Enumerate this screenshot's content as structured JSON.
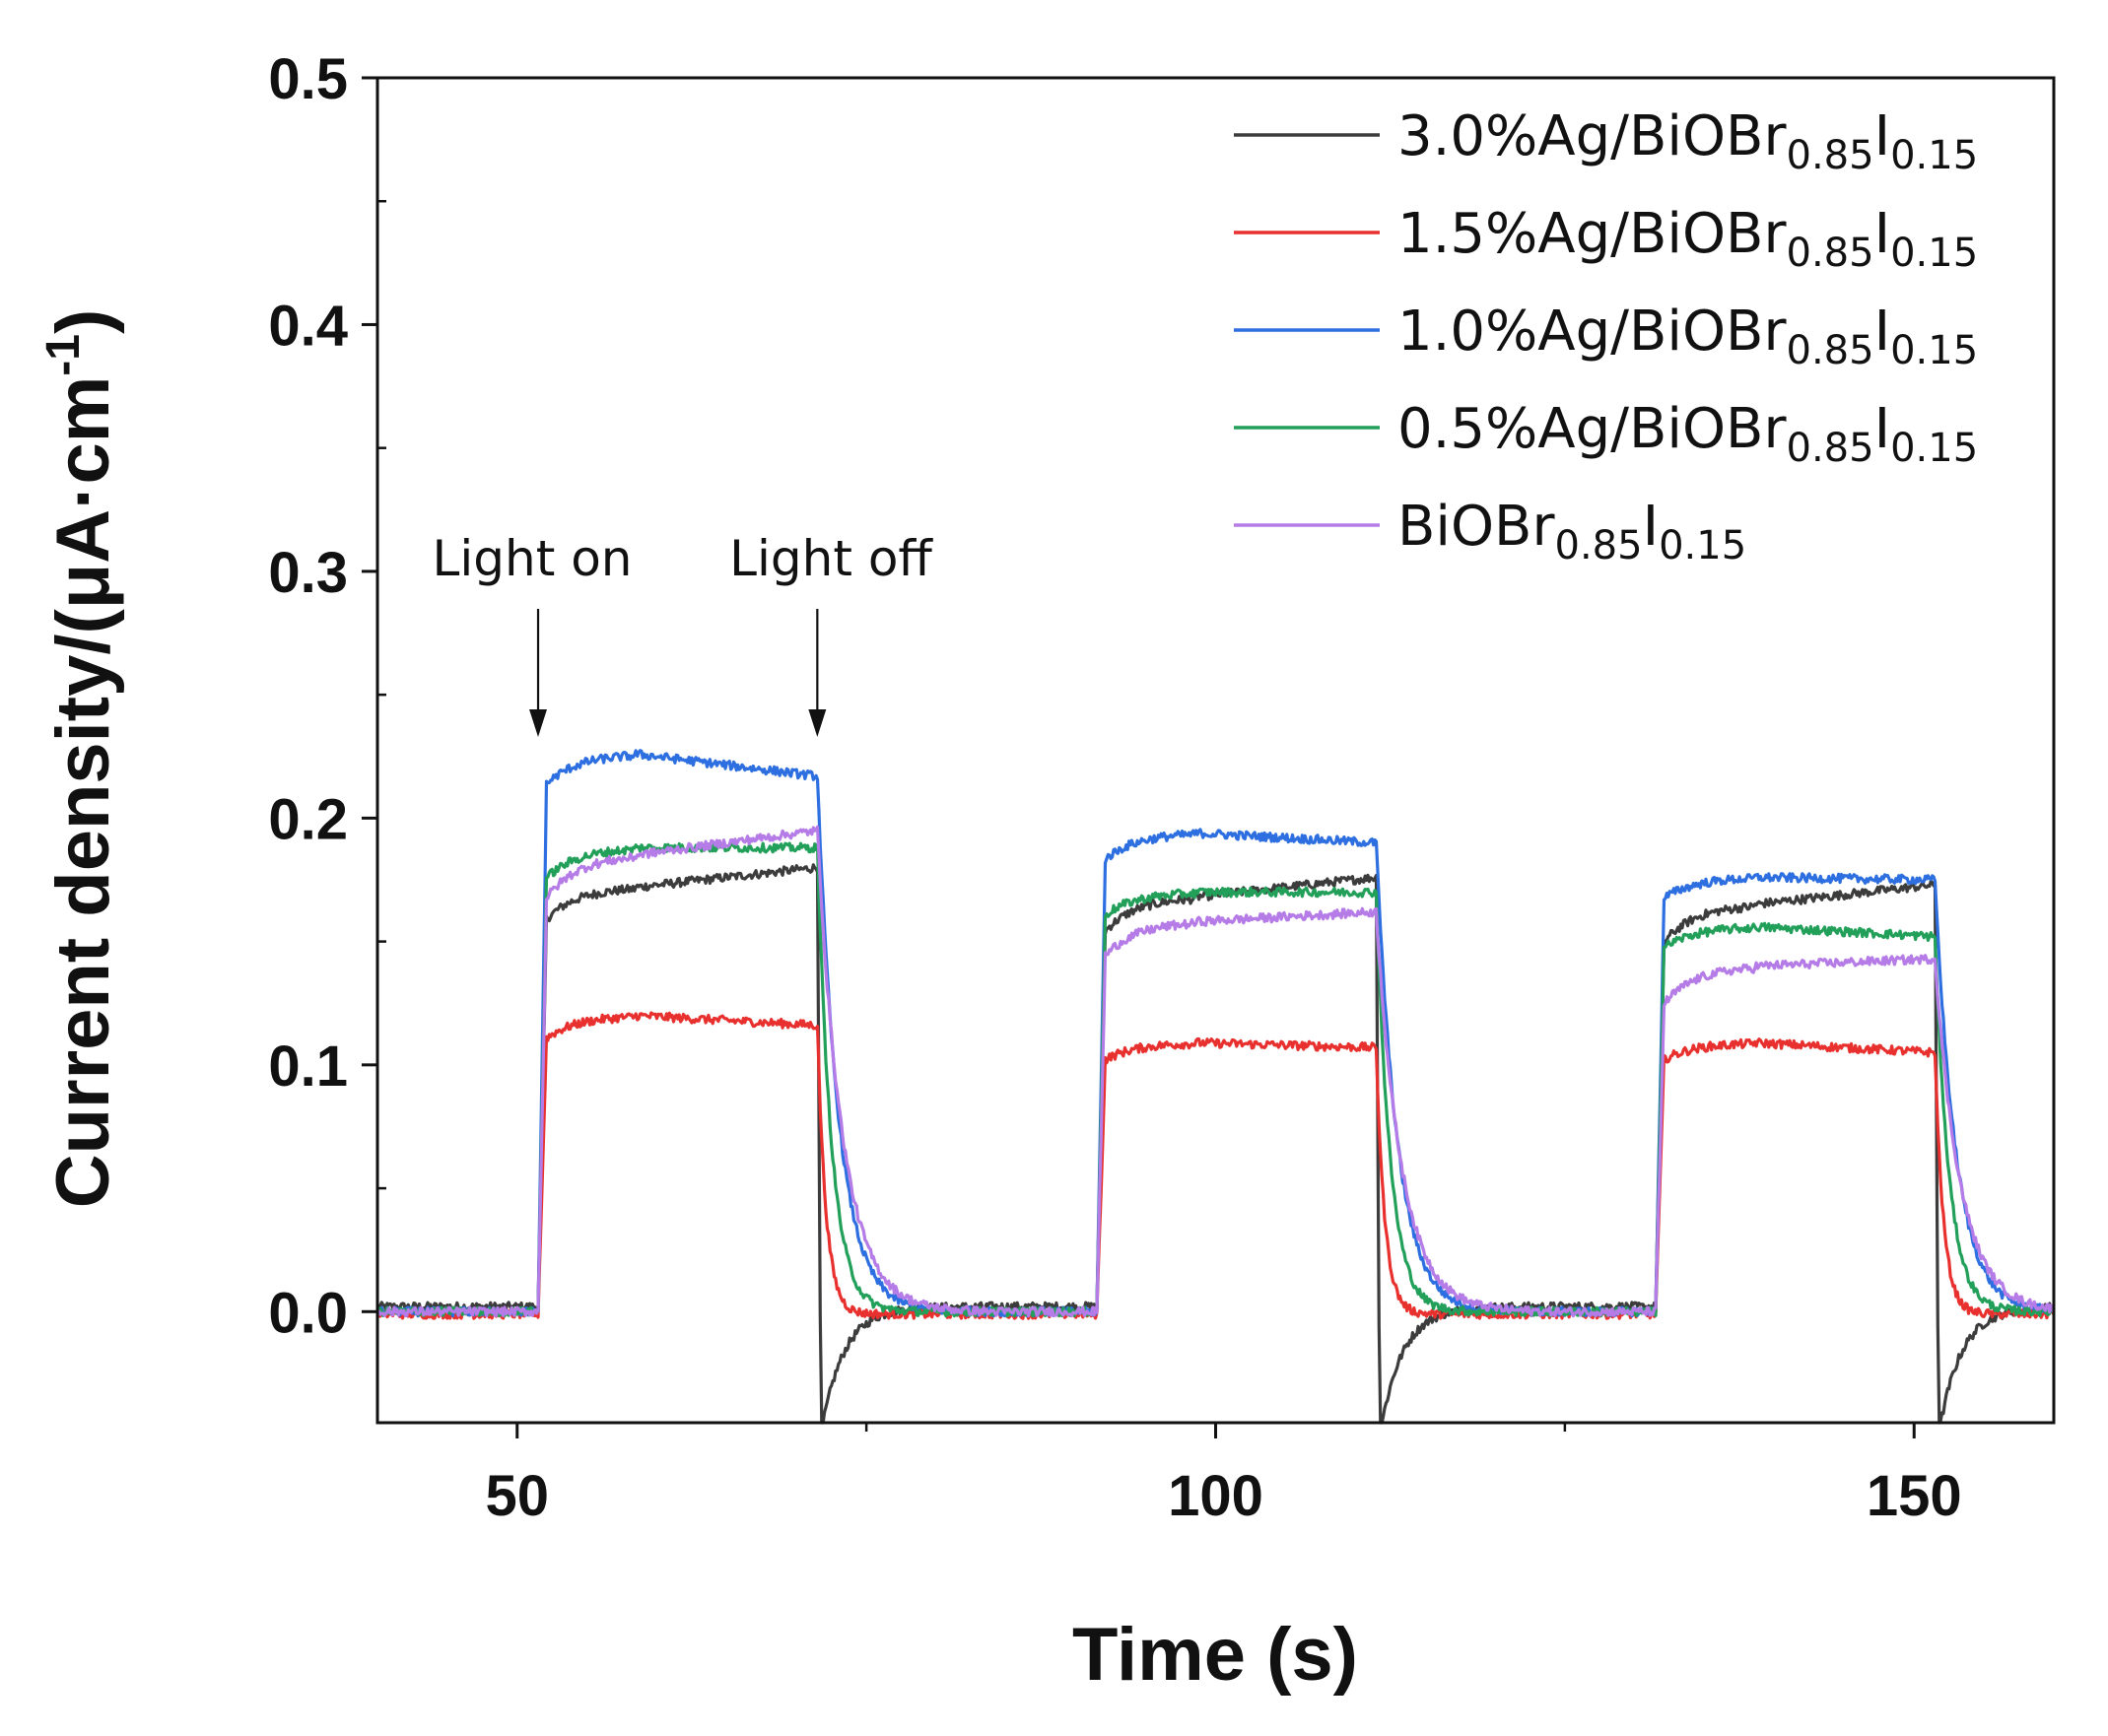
{
  "chart_data": {
    "type": "line",
    "title": "",
    "xlabel": "Time (s)",
    "ylabel": {
      "text": "Current density/(μA·cm",
      "superscript": "-1",
      "close": ")"
    },
    "xlim": [
      40,
      160
    ],
    "ylim": [
      -0.045,
      0.5
    ],
    "xticks": [
      50,
      100,
      150
    ],
    "yticks": [
      "0.0",
      "0.1",
      "0.2",
      "0.3",
      "0.4",
      "0.5"
    ],
    "legend_position": "top-right",
    "annotations": [
      {
        "text": "Light on",
        "x": 51.5
      },
      {
        "text": "Light off",
        "x": 70.5
      }
    ],
    "light_cycles": [
      {
        "on": 51.5,
        "off": 71.5
      },
      {
        "on": 91.5,
        "off": 111.5
      },
      {
        "on": 131.5,
        "off": 151.5
      }
    ],
    "series": [
      {
        "name": "3.0%Ag/BiOBr0.85I0.15",
        "label_parts": [
          {
            "t": "3.0%Ag/BiOBr",
            "sub": false
          },
          {
            "t": "0.85",
            "sub": true
          },
          {
            "t": "I",
            "sub": false
          },
          {
            "t": "0.15",
            "sub": true
          }
        ],
        "color": "#3c3c3c",
        "baseline": 0.002,
        "cycles": [
          {
            "start": 0.155,
            "mid": 0.172,
            "end": 0.18
          },
          {
            "start": 0.15,
            "mid": 0.168,
            "end": 0.176
          },
          {
            "start": 0.145,
            "mid": 0.165,
            "end": 0.173
          }
        ],
        "off_dip": -0.05,
        "off_tau": 1.6
      },
      {
        "name": "1.5%Ag/BiOBr0.85I0.15",
        "label_parts": [
          {
            "t": "1.5%Ag/BiOBr",
            "sub": false
          },
          {
            "t": "0.85",
            "sub": true
          },
          {
            "t": "I",
            "sub": false
          },
          {
            "t": "0.15",
            "sub": true
          }
        ],
        "color": "#e8312e",
        "baseline": -0.001,
        "cycles": [
          {
            "start": 0.108,
            "mid": 0.12,
            "end": 0.116
          },
          {
            "start": 0.1,
            "mid": 0.109,
            "end": 0.107
          },
          {
            "start": 0.1,
            "mid": 0.109,
            "end": 0.105
          }
        ],
        "off_dip": 0.0,
        "off_tau": 0.6
      },
      {
        "name": "1.0%Ag/BiOBr0.85I0.15",
        "label_parts": [
          {
            "t": "1.0%Ag/BiOBr",
            "sub": false
          },
          {
            "t": "0.85",
            "sub": true
          },
          {
            "t": "I",
            "sub": false
          },
          {
            "t": "0.15",
            "sub": true
          }
        ],
        "color": "#2d6fe0",
        "baseline": 0.0,
        "cycles": [
          {
            "start": 0.21,
            "mid": 0.226,
            "end": 0.217
          },
          {
            "start": 0.18,
            "mid": 0.194,
            "end": 0.19
          },
          {
            "start": 0.165,
            "mid": 0.176,
            "end": 0.175
          }
        ],
        "off_dip": 0.0,
        "off_tau": 1.5
      },
      {
        "name": "0.5%Ag/BiOBr0.85I0.15",
        "label_parts": [
          {
            "t": "0.5%Ag/BiOBr",
            "sub": false
          },
          {
            "t": "0.85",
            "sub": true
          },
          {
            "t": "I",
            "sub": false
          },
          {
            "t": "0.15",
            "sub": true
          }
        ],
        "color": "#22a05a",
        "baseline": 0.0,
        "cycles": [
          {
            "start": 0.172,
            "mid": 0.188,
            "end": 0.188
          },
          {
            "start": 0.158,
            "mid": 0.17,
            "end": 0.17
          },
          {
            "start": 0.145,
            "mid": 0.156,
            "end": 0.152
          }
        ],
        "off_dip": 0.0,
        "off_tau": 1.0
      },
      {
        "name": "BiOBr0.85I0.15",
        "label_parts": [
          {
            "t": "BiOBr",
            "sub": false
          },
          {
            "t": "0.85",
            "sub": true
          },
          {
            "t": "I",
            "sub": false
          },
          {
            "t": "0.15",
            "sub": true
          }
        ],
        "color": "#b57be6",
        "baseline": 0.0,
        "cycles": [
          {
            "start": 0.162,
            "mid": 0.185,
            "end": 0.195
          },
          {
            "start": 0.14,
            "mid": 0.158,
            "end": 0.162
          },
          {
            "start": 0.12,
            "mid": 0.14,
            "end": 0.143
          }
        ],
        "off_dip": 0.0,
        "off_tau": 1.8
      }
    ]
  }
}
